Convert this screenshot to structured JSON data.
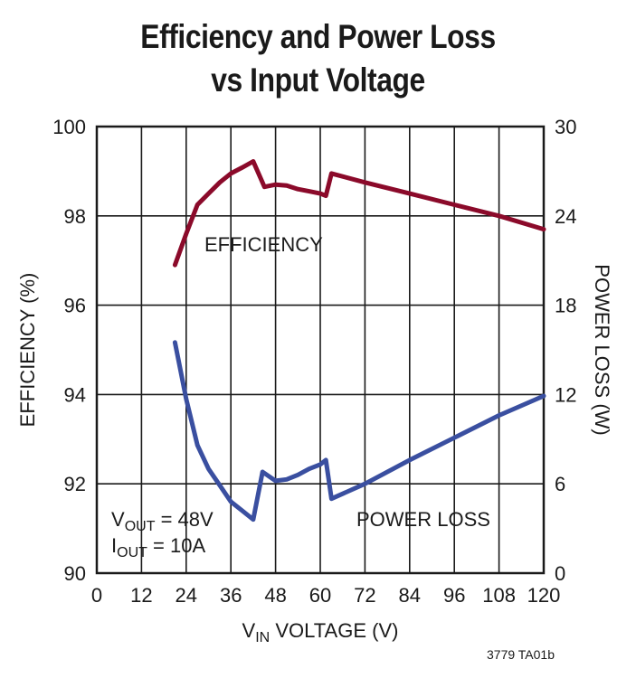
{
  "title_line1": "Efficiency and Power Loss",
  "title_line2": "vs Input Voltage",
  "xlabel": {
    "main": "V",
    "sub": "IN",
    "rest": " VOLTAGE (V)"
  },
  "ylabel_left": "EFFICIENCY (%)",
  "ylabel_right": "POWER LOSS (W)",
  "annotations": {
    "efficiency": "EFFICIENCY",
    "power_loss": "POWER LOSS",
    "vout": {
      "main": "V",
      "sub": "OUT",
      "rest": " = 48V"
    },
    "iout": {
      "main": "I",
      "sub": "OUT",
      "rest": " = 10A"
    }
  },
  "figure_id": "3779 TA01b",
  "colors": {
    "efficiency": "#8b0a2a",
    "power_loss": "#3a4fa0",
    "grid": "#1a1a1a"
  },
  "chart_data": {
    "type": "line",
    "title": "Efficiency and Power Loss vs Input Voltage",
    "x_ticks": [
      "0",
      "12",
      "24",
      "36",
      "48",
      "60",
      "72",
      "84",
      "96",
      "108",
      "120"
    ],
    "left_ticks": [
      "90",
      "92",
      "94",
      "96",
      "98",
      "100"
    ],
    "right_ticks": [
      "0",
      "6",
      "12",
      "18",
      "24",
      "30"
    ],
    "xlim": [
      0,
      120
    ],
    "ylim_left": [
      90,
      100
    ],
    "ylim_right": [
      0,
      30
    ],
    "series": [
      {
        "name": "Efficiency",
        "axis": "left",
        "x": [
          21,
          24,
          27,
          30,
          33,
          36,
          39,
          42,
          45,
          48,
          51,
          54,
          57,
          60,
          61.5,
          63,
          72,
          84,
          96,
          108,
          120
        ],
        "y": [
          96.9,
          97.6,
          98.25,
          98.5,
          98.75,
          98.95,
          99.08,
          99.22,
          98.65,
          98.7,
          98.68,
          98.6,
          98.55,
          98.5,
          98.45,
          98.95,
          98.75,
          98.5,
          98.25,
          98.0,
          97.7
        ]
      },
      {
        "name": "Power Loss",
        "axis": "right",
        "x": [
          21,
          24,
          27,
          30,
          33,
          36,
          39,
          42,
          44.5,
          48,
          51,
          54,
          57,
          60,
          61.5,
          63,
          72,
          84,
          96,
          108,
          120
        ],
        "y": [
          15.5,
          11.7,
          8.6,
          7.0,
          5.9,
          4.8,
          4.2,
          3.6,
          6.8,
          6.2,
          6.3,
          6.6,
          7.0,
          7.3,
          7.6,
          5.0,
          6.0,
          7.6,
          9.1,
          10.6,
          11.9
        ]
      }
    ]
  }
}
